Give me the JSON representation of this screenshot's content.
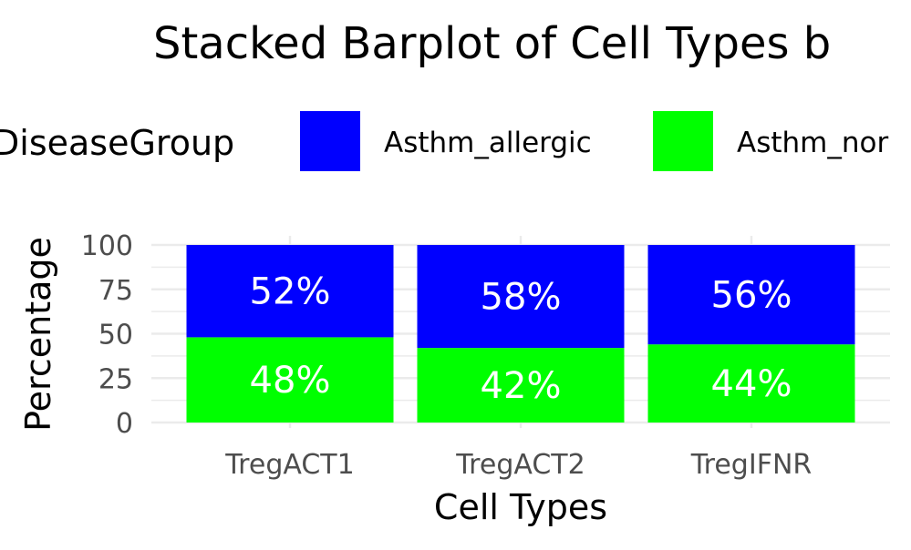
{
  "chart_data": {
    "type": "bar",
    "stacked": true,
    "title": "Stacked Barplot of Cell Types b",
    "xlabel": "Cell Types",
    "ylabel": "Percentage",
    "ylim": [
      0,
      100
    ],
    "yticks": [
      0,
      25,
      50,
      75,
      100
    ],
    "grid": true,
    "legend": {
      "title": "DiseaseGroup",
      "position": "top",
      "entries": [
        "Asthm_allergic",
        "Asthm_nor"
      ]
    },
    "categories": [
      "TregACT1",
      "TregACT2",
      "TregIFNR"
    ],
    "series": [
      {
        "name": "Asthm_nor",
        "color": "#00ff00",
        "values": [
          48,
          42,
          44
        ],
        "labels": [
          "48%",
          "42%",
          "44%"
        ]
      },
      {
        "name": "Asthm_allergic",
        "color": "#0000ff",
        "values": [
          52,
          58,
          56
        ],
        "labels": [
          "52%",
          "58%",
          "56%"
        ]
      }
    ]
  }
}
